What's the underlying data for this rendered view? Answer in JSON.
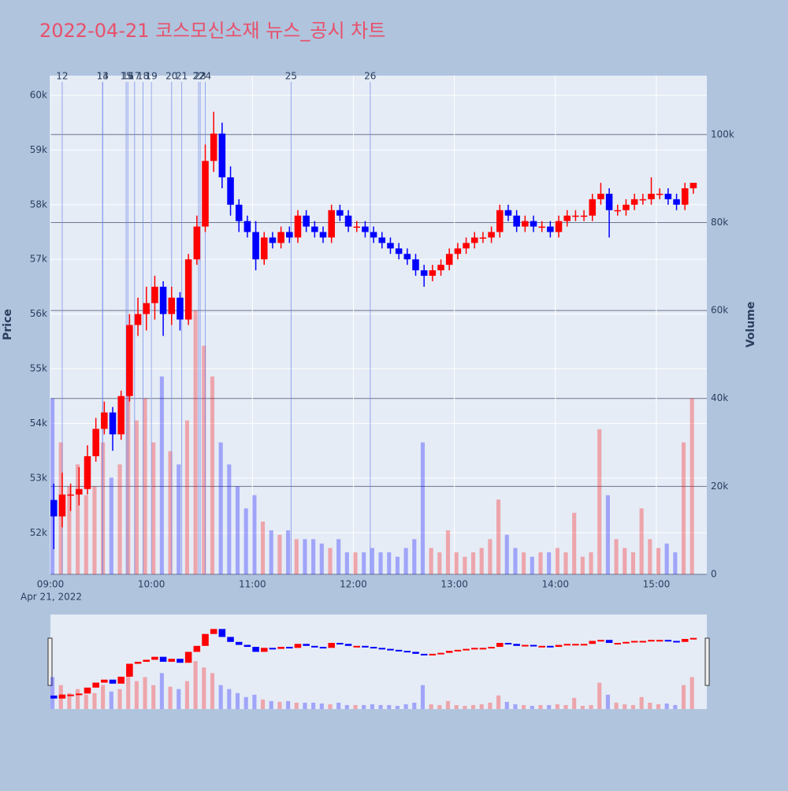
{
  "chart_data": {
    "type": "candlestick",
    "title": "2022-04-21 코스모신소재 뉴스_공시 차트",
    "y_label": "Price",
    "y2_label": "Volume",
    "x_date_label": "Apr 21, 2022",
    "up_color": "#ff0000",
    "down_color": "#0000ff",
    "title_color": "#e8506a",
    "x": [
      "09:00",
      "09:05",
      "09:10",
      "09:15",
      "09:20",
      "09:25",
      "09:30",
      "09:35",
      "09:40",
      "09:45",
      "09:50",
      "09:55",
      "10:00",
      "10:05",
      "10:10",
      "10:15",
      "10:20",
      "10:25",
      "10:30",
      "10:35",
      "10:40",
      "10:45",
      "10:50",
      "10:55",
      "11:00",
      "11:05",
      "11:10",
      "11:15",
      "11:20",
      "11:25",
      "11:30",
      "11:35",
      "11:40",
      "11:45",
      "11:50",
      "11:55",
      "12:00",
      "12:05",
      "12:10",
      "12:15",
      "12:20",
      "12:25",
      "12:30",
      "12:35",
      "12:40",
      "12:45",
      "12:50",
      "12:55",
      "13:00",
      "13:05",
      "13:10",
      "13:15",
      "13:20",
      "13:25",
      "13:30",
      "13:35",
      "13:40",
      "13:45",
      "13:50",
      "13:55",
      "14:00",
      "14:05",
      "14:10",
      "14:15",
      "14:20",
      "14:25",
      "14:30",
      "14:35",
      "14:40",
      "14:45",
      "14:50",
      "14:55",
      "15:00",
      "15:05",
      "15:10",
      "15:15",
      "15:20"
    ],
    "open": [
      52600,
      52300,
      52700,
      52700,
      52800,
      53400,
      53900,
      54200,
      53800,
      54500,
      55800,
      56000,
      56200,
      56500,
      56000,
      56300,
      55900,
      57000,
      57600,
      58800,
      59300,
      58500,
      58000,
      57700,
      57500,
      57000,
      57400,
      57300,
      57500,
      57400,
      57800,
      57600,
      57500,
      57400,
      57900,
      57800,
      57600,
      57600,
      57500,
      57400,
      57300,
      57200,
      57100,
      57000,
      56800,
      56700,
      56800,
      56900,
      57100,
      57200,
      57300,
      57400,
      57400,
      57500,
      57900,
      57800,
      57600,
      57700,
      57600,
      57600,
      57500,
      57700,
      57800,
      57800,
      57800,
      58100,
      58200,
      57900,
      57900,
      58000,
      58100,
      58100,
      58200,
      58200,
      58100,
      58000,
      58300
    ],
    "high": [
      52900,
      53100,
      52900,
      53200,
      53600,
      54100,
      54400,
      54300,
      54600,
      56000,
      56300,
      56500,
      56700,
      56600,
      56500,
      56400,
      57100,
      57800,
      59100,
      59700,
      59500,
      58700,
      58100,
      57800,
      57700,
      57500,
      57500,
      57600,
      57600,
      57900,
      57900,
      57700,
      57600,
      58000,
      58000,
      57900,
      57700,
      57700,
      57600,
      57500,
      57400,
      57300,
      57200,
      57100,
      56900,
      56900,
      57000,
      57200,
      57300,
      57400,
      57500,
      57500,
      57600,
      58000,
      58000,
      57900,
      57800,
      57800,
      57700,
      57700,
      57800,
      57900,
      57900,
      57900,
      58200,
      58400,
      58300,
      58000,
      58100,
      58200,
      58200,
      58500,
      58300,
      58300,
      58200,
      58400,
      58400
    ],
    "low": [
      51700,
      52100,
      52400,
      52500,
      52700,
      53300,
      53800,
      53500,
      53700,
      54400,
      55600,
      55700,
      55900,
      55600,
      55800,
      55700,
      55800,
      56900,
      57500,
      58600,
      58300,
      57800,
      57500,
      57400,
      56800,
      56900,
      57200,
      57200,
      57300,
      57300,
      57500,
      57400,
      57300,
      57300,
      57700,
      57500,
      57500,
      57400,
      57300,
      57200,
      57100,
      57000,
      56900,
      56700,
      56500,
      56600,
      56700,
      56800,
      57000,
      57100,
      57200,
      57300,
      57300,
      57400,
      57700,
      57500,
      57500,
      57500,
      57500,
      57400,
      57400,
      57600,
      57700,
      57700,
      57700,
      58000,
      57400,
      57800,
      57800,
      57900,
      58000,
      58000,
      58100,
      58000,
      57900,
      57900,
      58200
    ],
    "close": [
      52300,
      52700,
      52700,
      52800,
      53400,
      53900,
      54200,
      53800,
      54500,
      55800,
      56000,
      56200,
      56500,
      56000,
      56300,
      55900,
      57000,
      57600,
      58800,
      59300,
      58500,
      58000,
      57700,
      57500,
      57000,
      57400,
      57300,
      57500,
      57400,
      57800,
      57600,
      57500,
      57400,
      57900,
      57800,
      57600,
      57600,
      57500,
      57400,
      57300,
      57200,
      57100,
      57000,
      56800,
      56700,
      56800,
      56900,
      57100,
      57200,
      57300,
      57400,
      57400,
      57500,
      57900,
      57800,
      57600,
      57700,
      57600,
      57600,
      57500,
      57700,
      57800,
      57800,
      57800,
      58100,
      58200,
      57900,
      57900,
      58000,
      58100,
      58100,
      58200,
      58200,
      58100,
      58000,
      58300,
      58400
    ],
    "volume": [
      40000,
      30000,
      20000,
      25000,
      18000,
      20000,
      30000,
      22000,
      25000,
      50000,
      35000,
      40000,
      30000,
      45000,
      28000,
      25000,
      35000,
      60000,
      52000,
      45000,
      30000,
      25000,
      20000,
      15000,
      18000,
      12000,
      10000,
      9000,
      10000,
      8000,
      8000,
      8000,
      7000,
      6000,
      8000,
      5000,
      5000,
      5000,
      6000,
      5000,
      5000,
      4000,
      6000,
      8000,
      30000,
      6000,
      5000,
      10000,
      5000,
      4000,
      5000,
      6000,
      8000,
      17000,
      9000,
      6000,
      5000,
      4000,
      5000,
      5000,
      6000,
      5000,
      14000,
      4000,
      5000,
      33000,
      18000,
      8000,
      6000,
      5000,
      15000,
      8000,
      6000,
      7000,
      5000,
      30000,
      40000
    ],
    "events": [
      {
        "label": "12",
        "x": "09:07"
      },
      {
        "label": "13",
        "x": "09:31"
      },
      {
        "label": "14",
        "x": "09:31"
      },
      {
        "label": "15",
        "x": "09:45"
      },
      {
        "label": "16",
        "x": "09:46"
      },
      {
        "label": "17",
        "x": "09:50"
      },
      {
        "label": "18",
        "x": "09:55"
      },
      {
        "label": "19",
        "x": "10:00"
      },
      {
        "label": "20",
        "x": "10:12"
      },
      {
        "label": "21",
        "x": "10:18"
      },
      {
        "label": "22",
        "x": "10:28"
      },
      {
        "label": "23",
        "x": "10:29"
      },
      {
        "label": "24",
        "x": "10:32"
      },
      {
        "label": "25",
        "x": "11:23"
      },
      {
        "label": "26",
        "x": "12:10"
      }
    ],
    "xlim": [
      "09:00",
      "15:30"
    ],
    "xticks": [
      "09:00",
      "10:00",
      "11:00",
      "12:00",
      "13:00",
      "14:00",
      "15:00"
    ],
    "ylim": [
      51240,
      60360
    ],
    "yticks": [
      {
        "value": 52000,
        "label": "52k"
      },
      {
        "value": 53000,
        "label": "53k"
      },
      {
        "value": 54000,
        "label": "54k"
      },
      {
        "value": 55000,
        "label": "55k"
      },
      {
        "value": 56000,
        "label": "56k"
      },
      {
        "value": 57000,
        "label": "57k"
      },
      {
        "value": 58000,
        "label": "58k"
      },
      {
        "value": 59000,
        "label": "59k"
      },
      {
        "value": 60000,
        "label": "60k"
      }
    ],
    "y2lim": [
      0,
      113400
    ],
    "y2ticks": [
      0,
      {
        "value": 20000,
        "label": "20k"
      },
      {
        "value": 40000,
        "label": "40k"
      },
      {
        "value": 60000,
        "label": "60k"
      },
      {
        "value": 80000,
        "label": "80k"
      },
      {
        "value": 100000,
        "label": "100k"
      }
    ],
    "grid": true,
    "rangeslider": true
  }
}
